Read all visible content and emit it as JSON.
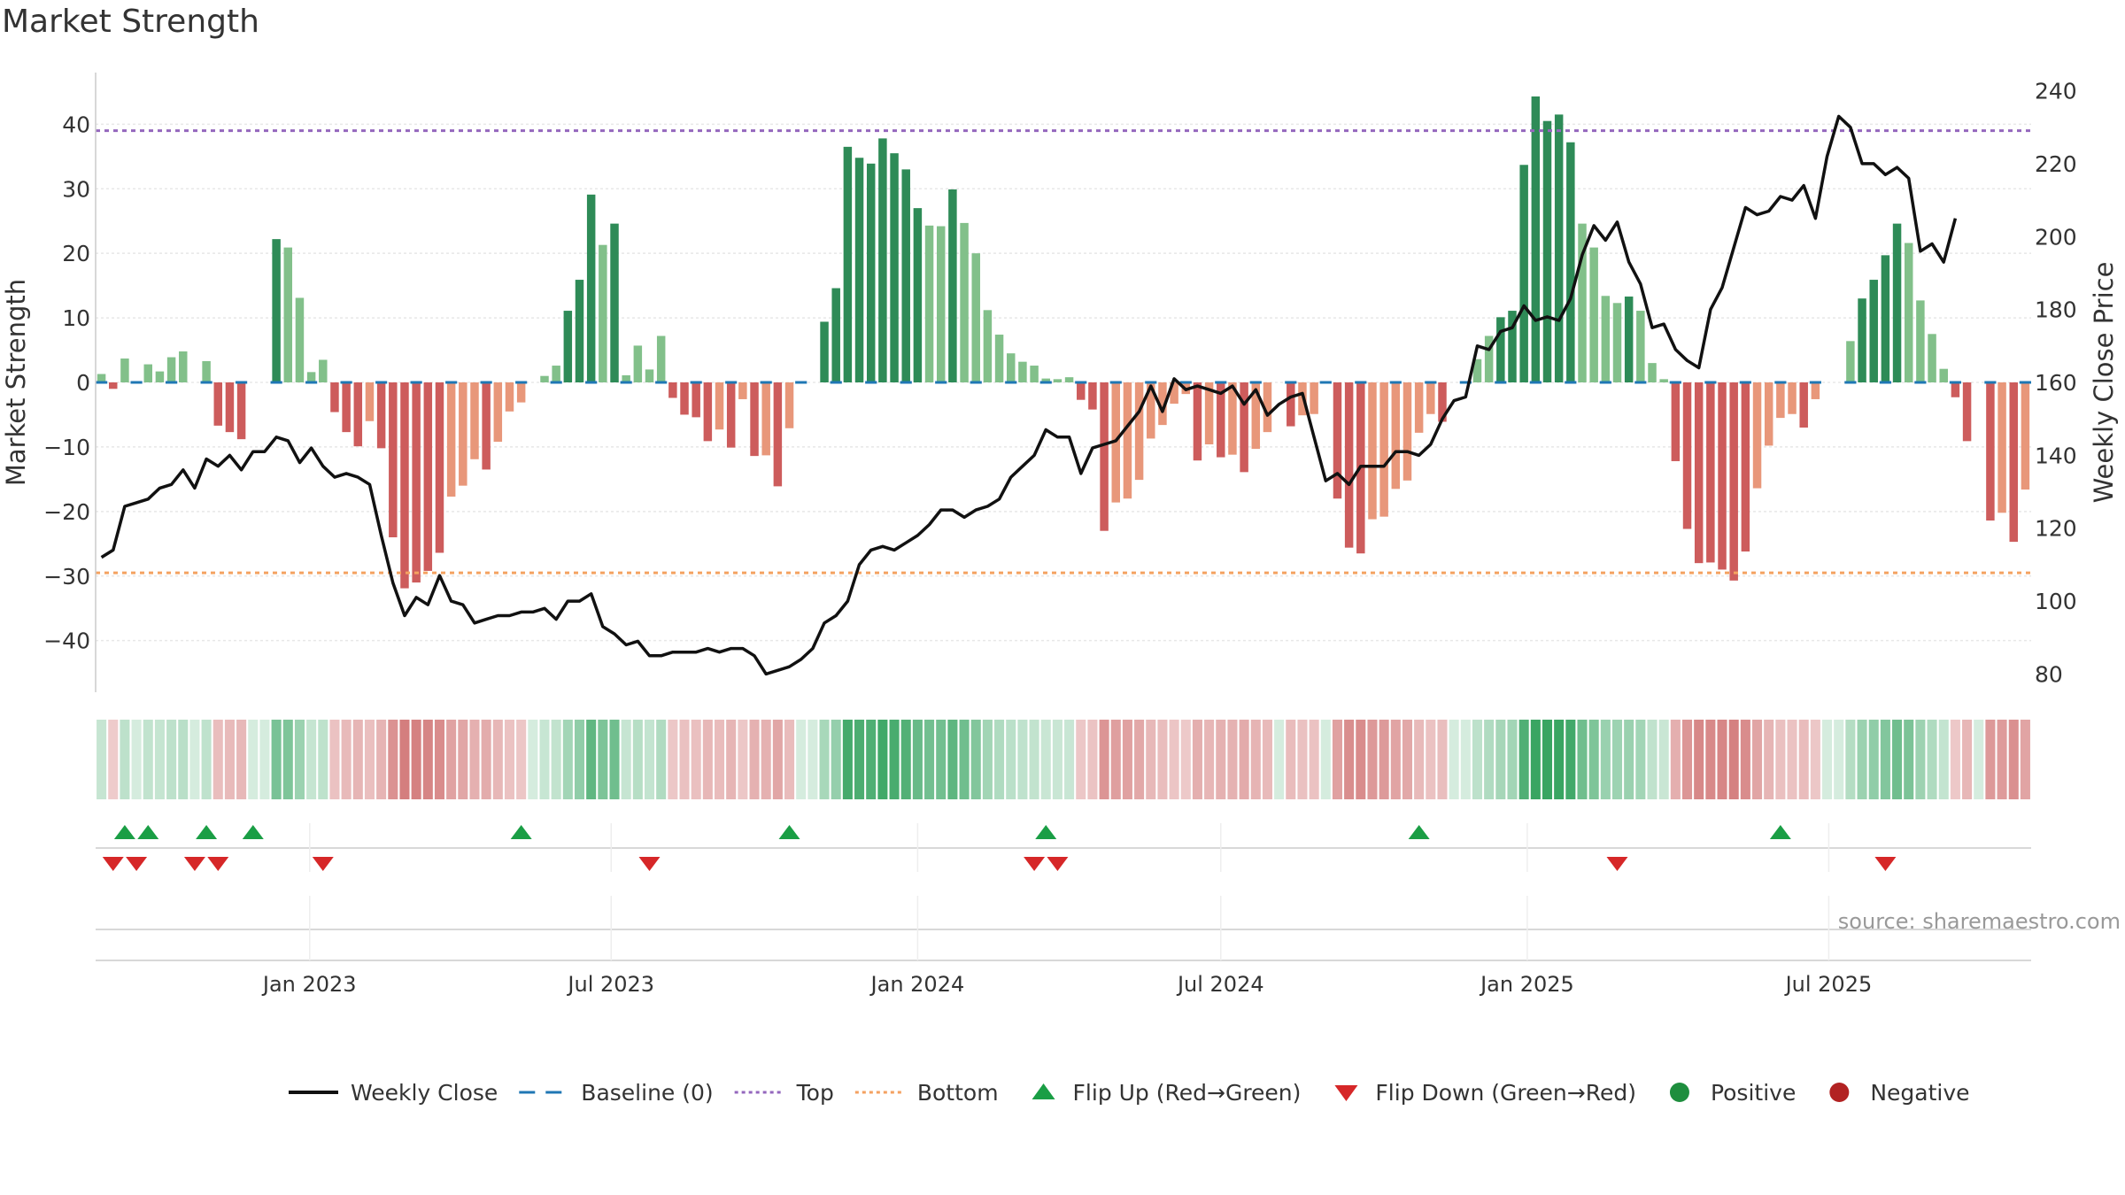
{
  "chart_title": "Market Strength",
  "source_text": "source: sharemaestro.com",
  "chart_data": {
    "type": "bar",
    "title": "Market Strength",
    "ylabel": "Market Strength",
    "y2label": "Weekly Close Price",
    "ylim": [
      -48,
      48
    ],
    "y2lim": [
      75,
      245
    ],
    "yticks": [
      40,
      30,
      20,
      10,
      0,
      -10,
      -20,
      -30,
      -40
    ],
    "y2ticks": [
      240,
      220,
      200,
      180,
      160,
      140,
      120,
      100,
      80
    ],
    "x_start": "2022-08-29",
    "x_step_days": 7,
    "xticks": [
      {
        "date": "2023-01-01",
        "label": "Jan 2023"
      },
      {
        "date": "2023-07-01",
        "label": "Jul 2023"
      },
      {
        "date": "2024-01-01",
        "label": "Jan 2024"
      },
      {
        "date": "2024-07-01",
        "label": "Jul 2024"
      },
      {
        "date": "2025-01-01",
        "label": "Jan 2025"
      },
      {
        "date": "2025-07-01",
        "label": "Jul 2025"
      }
    ],
    "top_line": 39,
    "bottom_line": -29.5,
    "baseline": 0,
    "strength": [
      1.3,
      -1.0,
      3.7,
      0,
      2.8,
      1.7,
      3.9,
      4.8,
      0,
      3.3,
      -6.7,
      -7.7,
      -8.8,
      0,
      0,
      22.2,
      20.9,
      13.1,
      1.6,
      3.5,
      -4.6,
      -7.7,
      -9.9,
      -6.0,
      -10.2,
      -24.0,
      -31.9,
      -31.0,
      -29.2,
      -26.4,
      -17.7,
      -16.0,
      -11.9,
      -13.5,
      -9.2,
      -4.5,
      -3.1,
      0,
      1.0,
      2.6,
      11.1,
      15.9,
      29.1,
      21.3,
      24.6,
      1.1,
      5.7,
      2.0,
      7.2,
      -2.4,
      -5.0,
      -5.4,
      -9.1,
      -7.3,
      -10.1,
      -2.6,
      -11.4,
      -11.3,
      -16.1,
      -7.1,
      0,
      0,
      9.4,
      14.6,
      36.5,
      34.8,
      33.9,
      37.8,
      35.5,
      33.0,
      27.0,
      24.3,
      24.2,
      29.9,
      24.7,
      20.0,
      11.2,
      7.4,
      4.5,
      3.2,
      2.6,
      0.6,
      0.5,
      0.8,
      -2.7,
      -4.2,
      -23.0,
      -18.6,
      -18.0,
      -15.1,
      -8.7,
      -6.6,
      -3.3,
      -1.8,
      -12.1,
      -9.6,
      -11.6,
      -11.2,
      -13.9,
      -10.3,
      -7.7,
      0,
      -6.8,
      -5.1,
      -4.9,
      0,
      -18.0,
      -25.6,
      -26.5,
      -21.2,
      -20.8,
      -16.5,
      -15.2,
      -7.8,
      -4.9,
      -6.1,
      0,
      0,
      3.6,
      7.2,
      10.1,
      11.1,
      33.7,
      44.3,
      40.5,
      41.5,
      37.2,
      24.6,
      20.9,
      13.4,
      12.3,
      13.3,
      11.1,
      3.0,
      0.5,
      -12.2,
      -22.7,
      -28.0,
      -27.9,
      -29.0,
      -30.7,
      -26.2,
      -16.4,
      -9.8,
      -5.5,
      -4.9,
      -7.0,
      -2.6,
      0,
      0,
      6.4,
      13.0,
      15.9,
      19.7,
      24.6,
      21.6,
      12.7,
      7.5,
      2.1,
      -2.3,
      -9.1,
      0,
      -21.4,
      -20.2,
      -24.7,
      -16.6
    ],
    "price": [
      112,
      114,
      126,
      127,
      128,
      131,
      132,
      136,
      131,
      139,
      137,
      140,
      136,
      141,
      141,
      145,
      144,
      138,
      142,
      137,
      134,
      135,
      134,
      132,
      118,
      105,
      96,
      101,
      99,
      107,
      100,
      99,
      94,
      95,
      96,
      96,
      97,
      97,
      98,
      95,
      100,
      100,
      102,
      93,
      91,
      88,
      89,
      85,
      85,
      86,
      86,
      86,
      87,
      86,
      87,
      87,
      85,
      80,
      81,
      82,
      84,
      87,
      94,
      96,
      100,
      110,
      114,
      115,
      114,
      116,
      118,
      121,
      125,
      125,
      123,
      125,
      126,
      128,
      134,
      137,
      140,
      147,
      145,
      145,
      135,
      142,
      143,
      144,
      148,
      152,
      159,
      152,
      161,
      158,
      159,
      158,
      157,
      159,
      154,
      158,
      151,
      154,
      156,
      157,
      145,
      133,
      135,
      132,
      137,
      137,
      137,
      141,
      141,
      140,
      143,
      150,
      155,
      156,
      170,
      169,
      174,
      175,
      181,
      177,
      178,
      177,
      183,
      195,
      203,
      199,
      204,
      193,
      187,
      175,
      176,
      169,
      166,
      164,
      180,
      186,
      197,
      208,
      206,
      207,
      211,
      210,
      214,
      205,
      222,
      233,
      230,
      220,
      220,
      217,
      219,
      216,
      196,
      198,
      193,
      205
    ],
    "flips_up": [
      2,
      4,
      9,
      13,
      36,
      59,
      81,
      113,
      144
    ],
    "flips_down": [
      1,
      3,
      8,
      10,
      19,
      47,
      80,
      82,
      130,
      153
    ],
    "colors": {
      "strong_up": "#2e8b57",
      "weak_up": "#82c08a",
      "strong_down": "#cd5c5c",
      "weak_down": "#e8977a",
      "baseline": "#1f77b4",
      "top": "#9467bd",
      "bottom": "#f4a261",
      "price_line": "#111111",
      "flip_up": "#1a9e45",
      "flip_down": "#d62728",
      "positive": "#1e8e3e",
      "negative": "#b22222"
    }
  },
  "legend": {
    "items": [
      {
        "label": "Weekly Close",
        "kind": "line",
        "color": "#111111"
      },
      {
        "label": "Baseline (0)",
        "kind": "dash",
        "color": "#1f77b4"
      },
      {
        "label": "Top",
        "kind": "dot",
        "color": "#9467bd"
      },
      {
        "label": "Bottom",
        "kind": "dot",
        "color": "#f4a261"
      },
      {
        "label": "Flip Up (Red→Green)",
        "kind": "tri-up",
        "color": "#1a9e45"
      },
      {
        "label": "Flip Down (Green→Red)",
        "kind": "tri-down",
        "color": "#d62728"
      },
      {
        "label": "Positive",
        "kind": "circle",
        "color": "#1e8e3e"
      },
      {
        "label": "Negative",
        "kind": "circle",
        "color": "#b22222"
      }
    ]
  }
}
